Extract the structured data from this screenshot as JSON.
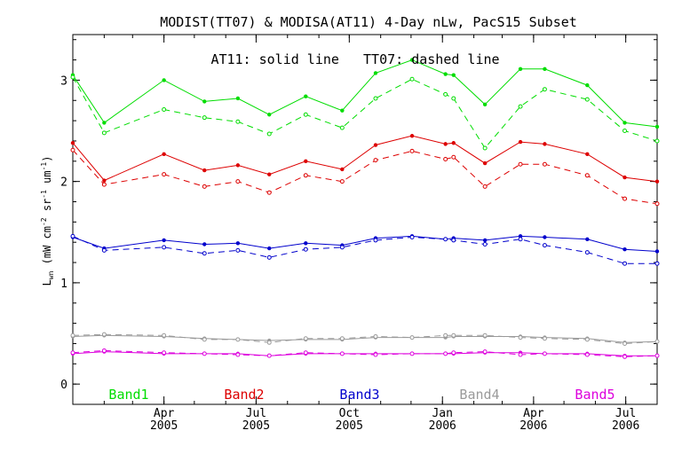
{
  "chart_data": {
    "type": "line",
    "title": "MODIST(TT07) & MODISA(AT11) 4-Day nLw, PacS15 Subset",
    "annotation": "AT11: solid line   TT07: dashed line",
    "ylabel": {
      "main": "L",
      "sub": "wn",
      "unit_open": " (mW cm",
      "exp1": "-2",
      "sr": " sr",
      "exp2": "-1",
      "um": " um",
      "exp3": "-1",
      "close": ")"
    },
    "ylim": [
      -0.2,
      3.45
    ],
    "yticks": [
      {
        "value": 0,
        "label": "0"
      },
      {
        "value": 1,
        "label": "1"
      },
      {
        "value": 2,
        "label": "2"
      },
      {
        "value": 3,
        "label": "3"
      }
    ],
    "xlim": [
      "2005-01-01",
      "2006-08-01"
    ],
    "xticks": [
      {
        "date": "2005-04-01",
        "month": "Apr",
        "year": "2005"
      },
      {
        "date": "2005-07-01",
        "month": "Jul",
        "year": "2005"
      },
      {
        "date": "2005-10-01",
        "month": "Oct",
        "year": "2005"
      },
      {
        "date": "2006-01-01",
        "month": "Jan",
        "year": "2006"
      },
      {
        "date": "2006-04-01",
        "month": "Apr",
        "year": "2006"
      },
      {
        "date": "2006-07-01",
        "month": "Jul",
        "year": "2006"
      }
    ],
    "x": [
      "2005-01-01",
      "2005-02-01",
      "2005-04-01",
      "2005-05-11",
      "2005-06-13",
      "2005-07-14",
      "2005-08-19",
      "2005-09-24",
      "2005-10-27",
      "2005-12-02",
      "2006-01-04",
      "2006-01-12",
      "2006-02-12",
      "2006-03-19",
      "2006-04-12",
      "2006-05-24",
      "2006-06-30",
      "2006-08-01"
    ],
    "series": [
      {
        "name": "Band1",
        "color": "#00dd00",
        "solid": [
          3.05,
          2.58,
          3.0,
          2.79,
          2.82,
          2.66,
          2.84,
          2.7,
          3.07,
          3.2,
          3.06,
          3.05,
          2.76,
          3.11,
          3.11,
          2.95,
          2.58,
          2.54
        ],
        "dashed": [
          3.03,
          2.48,
          2.71,
          2.63,
          2.59,
          2.47,
          2.66,
          2.53,
          2.82,
          3.01,
          2.86,
          2.82,
          2.33,
          2.74,
          2.91,
          2.81,
          2.5,
          2.4
        ]
      },
      {
        "name": "Band2",
        "color": "#dd0000",
        "solid": [
          2.38,
          2.01,
          2.27,
          2.11,
          2.16,
          2.07,
          2.2,
          2.12,
          2.36,
          2.45,
          2.37,
          2.38,
          2.18,
          2.39,
          2.37,
          2.27,
          2.04,
          2.0
        ],
        "dashed": [
          2.31,
          1.97,
          2.07,
          1.95,
          2.0,
          1.89,
          2.06,
          2.0,
          2.21,
          2.3,
          2.22,
          2.24,
          1.95,
          2.17,
          2.17,
          2.06,
          1.83,
          1.78
        ]
      },
      {
        "name": "Band3",
        "color": "#0000cc",
        "solid": [
          1.45,
          1.34,
          1.42,
          1.38,
          1.39,
          1.34,
          1.39,
          1.37,
          1.44,
          1.46,
          1.43,
          1.44,
          1.42,
          1.46,
          1.45,
          1.43,
          1.33,
          1.31
        ],
        "dashed": [
          1.46,
          1.32,
          1.35,
          1.29,
          1.32,
          1.25,
          1.33,
          1.35,
          1.42,
          1.45,
          1.43,
          1.42,
          1.38,
          1.43,
          1.37,
          1.3,
          1.19,
          1.19
        ]
      },
      {
        "name": "Band4",
        "color": "#9a9a9a",
        "solid": [
          0.47,
          0.48,
          0.47,
          0.45,
          0.44,
          0.43,
          0.44,
          0.44,
          0.46,
          0.46,
          0.46,
          0.47,
          0.47,
          0.47,
          0.46,
          0.45,
          0.41,
          0.42
        ],
        "dashed": [
          0.48,
          0.49,
          0.48,
          0.44,
          0.44,
          0.41,
          0.45,
          0.45,
          0.47,
          0.46,
          0.48,
          0.48,
          0.48,
          0.46,
          0.45,
          0.44,
          0.4,
          0.42
        ]
      },
      {
        "name": "Band5",
        "color": "#dd00dd",
        "solid": [
          0.3,
          0.32,
          0.3,
          0.3,
          0.3,
          0.28,
          0.3,
          0.3,
          0.3,
          0.3,
          0.3,
          0.3,
          0.31,
          0.31,
          0.3,
          0.3,
          0.28,
          0.28
        ],
        "dashed": [
          0.31,
          0.33,
          0.31,
          0.3,
          0.29,
          0.28,
          0.31,
          0.3,
          0.29,
          0.3,
          0.3,
          0.31,
          0.32,
          0.29,
          0.3,
          0.29,
          0.27,
          0.28
        ]
      }
    ]
  }
}
